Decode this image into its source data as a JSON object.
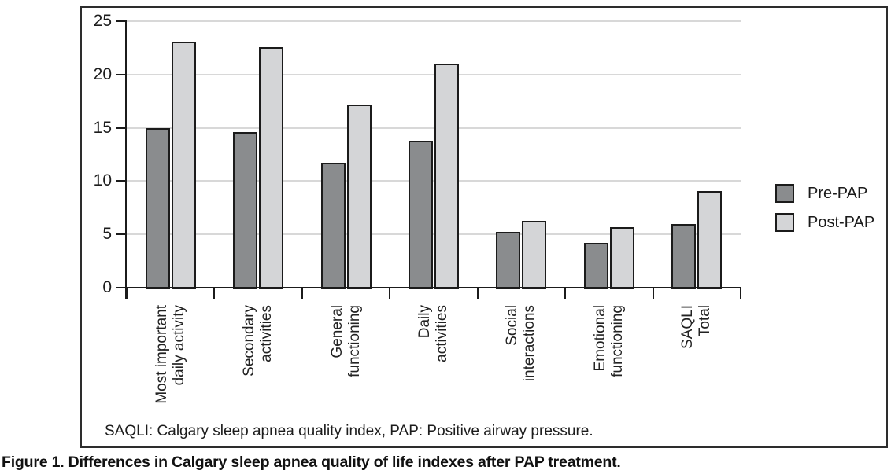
{
  "figure": {
    "footnote": "SAQLI: Calgary sleep apnea quality index, PAP: Positive airway pressure.",
    "caption": "Figure 1. Differences in Calgary sleep apnea quality of life indexes after PAP treatment."
  },
  "chart_data": {
    "type": "bar",
    "title": "",
    "xlabel": "",
    "ylabel": "",
    "ylim": [
      0,
      25
    ],
    "yticks": [
      0,
      5,
      10,
      15,
      20,
      25
    ],
    "grid": true,
    "legend_position": "right-outside",
    "categories": [
      "Most important\ndaily activity",
      "Secondary\nactivities",
      "General\nfunctioning",
      "Daily\nactivities",
      "Social\ninteractions",
      "Emotional\nfunctioning",
      "SAQLI\nTotal"
    ],
    "series": [
      {
        "name": "Pre-PAP",
        "color": "#8a8c8e",
        "values": [
          15.0,
          14.6,
          11.7,
          13.8,
          5.2,
          4.2,
          6.0
        ]
      },
      {
        "name": "Post-PAP",
        "color": "#d4d5d7",
        "values": [
          23.1,
          22.6,
          17.2,
          21.0,
          6.3,
          5.7,
          9.1
        ]
      }
    ],
    "colors": {
      "axis": "#1b1b1b",
      "gridline": "#d8d8d8",
      "bar_border": "#1b1b1b"
    }
  }
}
